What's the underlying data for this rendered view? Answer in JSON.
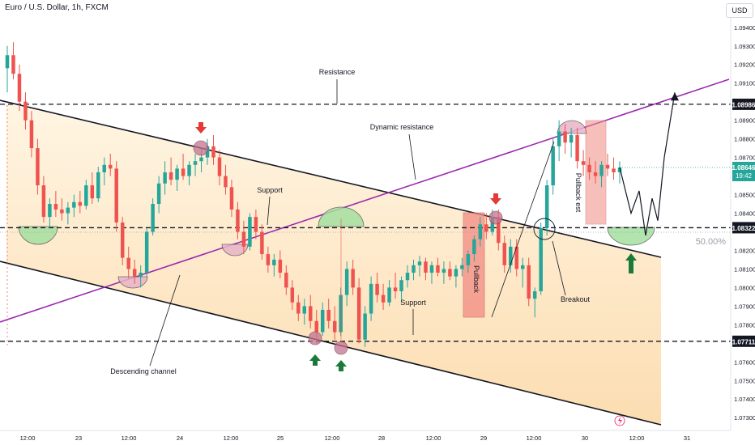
{
  "header": {
    "symbol_title": "Euro / U.S. Dollar, 1h, FXCM",
    "currency": "USD"
  },
  "chart_data": {
    "type": "candlestick",
    "symbol": "EURUSD",
    "timeframe": "1h",
    "x_tick_labels": [
      "12:00",
      "23",
      "12:00",
      "24",
      "12:00",
      "25",
      "12:00",
      "28",
      "12:00",
      "29",
      "12:00",
      "30",
      "12:00",
      "31"
    ],
    "y_tick_labels": [
      "1.09400",
      "1.09300",
      "1.09200",
      "1.09100",
      "1.08900",
      "1.08800",
      "1.08700",
      "1.08500",
      "1.08400",
      "1.08200",
      "1.08100",
      "1.08000",
      "1.07900",
      "1.07800",
      "1.07600",
      "1.07500",
      "1.07400",
      "1.07300"
    ],
    "ylim": [
      1.0724,
      1.0946
    ],
    "horizontal_levels": [
      {
        "price": 1.08986,
        "label": "1.08986",
        "style": "dashed"
      },
      {
        "price": 1.08322,
        "label": "1.08322",
        "style": "dashed"
      },
      {
        "price": 1.07711,
        "label": "1.07711",
        "style": "dashed"
      }
    ],
    "current_price": {
      "price": "1.08646",
      "countdown": "19:42",
      "color": "#26a69a"
    },
    "fib_label": "50.00%",
    "annotations": [
      "Resistance",
      "Dynamic resistance",
      "Support",
      "Support",
      "Descending channel",
      "Pullback",
      "Pullback est",
      "Breakout"
    ],
    "colors": {
      "up": "#26a69a",
      "down": "#ef5350",
      "channel_line": "#131722",
      "dynamic_line": "#9c27b0",
      "channel_fill": "#fde3b8",
      "support_zone": "#a5e0a0",
      "resistance_zone": "#e8b4c8",
      "pullback_box": "#f28b82",
      "arrow_up": "#1b7a3a",
      "arrow_down": "#e53935"
    },
    "candles": [
      {
        "o": 1.0918,
        "h": 1.093,
        "l": 1.0905,
        "c": 1.0925
      },
      {
        "o": 1.0925,
        "h": 1.0932,
        "l": 1.0912,
        "c": 1.0915
      },
      {
        "o": 1.0915,
        "h": 1.092,
        "l": 1.0895,
        "c": 1.09
      },
      {
        "o": 1.09,
        "h": 1.0905,
        "l": 1.0885,
        "c": 1.089
      },
      {
        "o": 1.089,
        "h": 1.0895,
        "l": 1.087,
        "c": 1.0875
      },
      {
        "o": 1.0875,
        "h": 1.088,
        "l": 1.085,
        "c": 1.0855
      },
      {
        "o": 1.0855,
        "h": 1.086,
        "l": 1.0835,
        "c": 1.0838
      },
      {
        "o": 1.0838,
        "h": 1.0848,
        "l": 1.0832,
        "c": 1.0845
      },
      {
        "o": 1.0845,
        "h": 1.0852,
        "l": 1.0838,
        "c": 1.0842
      },
      {
        "o": 1.0842,
        "h": 1.0848,
        "l": 1.0836,
        "c": 1.084
      },
      {
        "o": 1.084,
        "h": 1.0846,
        "l": 1.0834,
        "c": 1.0843
      },
      {
        "o": 1.0843,
        "h": 1.085,
        "l": 1.0838,
        "c": 1.0846
      },
      {
        "o": 1.0846,
        "h": 1.0852,
        "l": 1.084,
        "c": 1.0844
      },
      {
        "o": 1.0844,
        "h": 1.0858,
        "l": 1.0842,
        "c": 1.0855
      },
      {
        "o": 1.0855,
        "h": 1.0862,
        "l": 1.0845,
        "c": 1.0848
      },
      {
        "o": 1.0848,
        "h": 1.0865,
        "l": 1.0846,
        "c": 1.0862
      },
      {
        "o": 1.0862,
        "h": 1.087,
        "l": 1.0855,
        "c": 1.0866
      },
      {
        "o": 1.0866,
        "h": 1.0872,
        "l": 1.086,
        "c": 1.0864
      },
      {
        "o": 1.0864,
        "h": 1.0868,
        "l": 1.083,
        "c": 1.0835
      },
      {
        "o": 1.0835,
        "h": 1.0838,
        "l": 1.0812,
        "c": 1.0816
      },
      {
        "o": 1.0816,
        "h": 1.0822,
        "l": 1.0805,
        "c": 1.081
      },
      {
        "o": 1.081,
        "h": 1.0815,
        "l": 1.0802,
        "c": 1.0806
      },
      {
        "o": 1.0806,
        "h": 1.0812,
        "l": 1.08,
        "c": 1.0808
      },
      {
        "o": 1.0808,
        "h": 1.0832,
        "l": 1.0806,
        "c": 1.083
      },
      {
        "o": 1.083,
        "h": 1.0848,
        "l": 1.0828,
        "c": 1.0845
      },
      {
        "o": 1.0845,
        "h": 1.086,
        "l": 1.084,
        "c": 1.0856
      },
      {
        "o": 1.0856,
        "h": 1.0868,
        "l": 1.085,
        "c": 1.0862
      },
      {
        "o": 1.0862,
        "h": 1.087,
        "l": 1.0855,
        "c": 1.0858
      },
      {
        "o": 1.0858,
        "h": 1.0866,
        "l": 1.0852,
        "c": 1.0864
      },
      {
        "o": 1.0864,
        "h": 1.0872,
        "l": 1.0858,
        "c": 1.086
      },
      {
        "o": 1.086,
        "h": 1.0868,
        "l": 1.0855,
        "c": 1.0866
      },
      {
        "o": 1.0866,
        "h": 1.0872,
        "l": 1.086,
        "c": 1.0868
      },
      {
        "o": 1.0868,
        "h": 1.0875,
        "l": 1.0862,
        "c": 1.087
      },
      {
        "o": 1.087,
        "h": 1.088,
        "l": 1.0866,
        "c": 1.0876
      },
      {
        "o": 1.0876,
        "h": 1.0882,
        "l": 1.0866,
        "c": 1.087
      },
      {
        "o": 1.087,
        "h": 1.0874,
        "l": 1.0855,
        "c": 1.086
      },
      {
        "o": 1.086,
        "h": 1.0866,
        "l": 1.085,
        "c": 1.0854
      },
      {
        "o": 1.0854,
        "h": 1.0858,
        "l": 1.0838,
        "c": 1.0842
      },
      {
        "o": 1.0842,
        "h": 1.0846,
        "l": 1.0826,
        "c": 1.083
      },
      {
        "o": 1.083,
        "h": 1.0836,
        "l": 1.0818,
        "c": 1.0822
      },
      {
        "o": 1.0822,
        "h": 1.084,
        "l": 1.082,
        "c": 1.0838
      },
      {
        "o": 1.0838,
        "h": 1.0842,
        "l": 1.0826,
        "c": 1.083
      },
      {
        "o": 1.083,
        "h": 1.0834,
        "l": 1.0815,
        "c": 1.0818
      },
      {
        "o": 1.0818,
        "h": 1.0822,
        "l": 1.0808,
        "c": 1.0812
      },
      {
        "o": 1.0812,
        "h": 1.0818,
        "l": 1.0806,
        "c": 1.0815
      },
      {
        "o": 1.0815,
        "h": 1.082,
        "l": 1.0805,
        "c": 1.0808
      },
      {
        "o": 1.0808,
        "h": 1.0812,
        "l": 1.0796,
        "c": 1.08
      },
      {
        "o": 1.08,
        "h": 1.0804,
        "l": 1.0788,
        "c": 1.0792
      },
      {
        "o": 1.0792,
        "h": 1.0796,
        "l": 1.0782,
        "c": 1.0786
      },
      {
        "o": 1.0786,
        "h": 1.0794,
        "l": 1.078,
        "c": 1.079
      },
      {
        "o": 1.079,
        "h": 1.0796,
        "l": 1.0778,
        "c": 1.0782
      },
      {
        "o": 1.0782,
        "h": 1.0788,
        "l": 1.077,
        "c": 1.0776
      },
      {
        "o": 1.0776,
        "h": 1.0792,
        "l": 1.0774,
        "c": 1.0788
      },
      {
        "o": 1.0788,
        "h": 1.0794,
        "l": 1.0778,
        "c": 1.0782
      },
      {
        "o": 1.0782,
        "h": 1.079,
        "l": 1.0772,
        "c": 1.0776
      },
      {
        "o": 1.0776,
        "h": 1.08,
        "l": 1.0774,
        "c": 1.0796
      },
      {
        "o": 1.0796,
        "h": 1.0814,
        "l": 1.079,
        "c": 1.081
      },
      {
        "o": 1.081,
        "h": 1.0815,
        "l": 1.0796,
        "c": 1.08
      },
      {
        "o": 1.08,
        "h": 1.0805,
        "l": 1.077,
        "c": 1.0772
      },
      {
        "o": 1.0772,
        "h": 1.079,
        "l": 1.0768,
        "c": 1.0786
      },
      {
        "o": 1.0786,
        "h": 1.0806,
        "l": 1.0782,
        "c": 1.0802
      },
      {
        "o": 1.0802,
        "h": 1.0808,
        "l": 1.0792,
        "c": 1.0796
      },
      {
        "o": 1.0796,
        "h": 1.0802,
        "l": 1.0788,
        "c": 1.0792
      },
      {
        "o": 1.0792,
        "h": 1.0804,
        "l": 1.079,
        "c": 1.08
      },
      {
        "o": 1.08,
        "h": 1.0808,
        "l": 1.0794,
        "c": 1.0798
      },
      {
        "o": 1.0798,
        "h": 1.0806,
        "l": 1.0792,
        "c": 1.0804
      },
      {
        "o": 1.0804,
        "h": 1.0812,
        "l": 1.08,
        "c": 1.0808
      },
      {
        "o": 1.0808,
        "h": 1.0815,
        "l": 1.0804,
        "c": 1.0812
      },
      {
        "o": 1.0812,
        "h": 1.0817,
        "l": 1.0806,
        "c": 1.0814
      },
      {
        "o": 1.0814,
        "h": 1.0816,
        "l": 1.0804,
        "c": 1.0808
      },
      {
        "o": 1.0808,
        "h": 1.0814,
        "l": 1.0802,
        "c": 1.0812
      },
      {
        "o": 1.0812,
        "h": 1.0816,
        "l": 1.0806,
        "c": 1.0808
      },
      {
        "o": 1.0808,
        "h": 1.0814,
        "l": 1.0802,
        "c": 1.081
      },
      {
        "o": 1.081,
        "h": 1.0814,
        "l": 1.0804,
        "c": 1.0806
      },
      {
        "o": 1.0806,
        "h": 1.0812,
        "l": 1.08,
        "c": 1.081
      },
      {
        "o": 1.081,
        "h": 1.0816,
        "l": 1.0806,
        "c": 1.0812
      },
      {
        "o": 1.0812,
        "h": 1.082,
        "l": 1.0808,
        "c": 1.0818
      },
      {
        "o": 1.0818,
        "h": 1.0828,
        "l": 1.0814,
        "c": 1.0826
      },
      {
        "o": 1.0826,
        "h": 1.0838,
        "l": 1.0822,
        "c": 1.0834
      },
      {
        "o": 1.0834,
        "h": 1.084,
        "l": 1.0826,
        "c": 1.083
      },
      {
        "o": 1.083,
        "h": 1.0842,
        "l": 1.0828,
        "c": 1.0838
      },
      {
        "o": 1.0838,
        "h": 1.0842,
        "l": 1.082,
        "c": 1.0824
      },
      {
        "o": 1.0824,
        "h": 1.0828,
        "l": 1.0808,
        "c": 1.0812
      },
      {
        "o": 1.0812,
        "h": 1.0826,
        "l": 1.0808,
        "c": 1.0822
      },
      {
        "o": 1.0822,
        "h": 1.0826,
        "l": 1.0806,
        "c": 1.081
      },
      {
        "o": 1.081,
        "h": 1.0816,
        "l": 1.08,
        "c": 1.0812
      },
      {
        "o": 1.0812,
        "h": 1.0816,
        "l": 1.079,
        "c": 1.0794
      },
      {
        "o": 1.0794,
        "h": 1.08,
        "l": 1.0784,
        "c": 1.0798
      },
      {
        "o": 1.0798,
        "h": 1.0835,
        "l": 1.0796,
        "c": 1.0832
      },
      {
        "o": 1.0832,
        "h": 1.0858,
        "l": 1.0828,
        "c": 1.0855
      },
      {
        "o": 1.0855,
        "h": 1.088,
        "l": 1.085,
        "c": 1.0876
      },
      {
        "o": 1.0876,
        "h": 1.089,
        "l": 1.0868,
        "c": 1.0884
      },
      {
        "o": 1.0884,
        "h": 1.0888,
        "l": 1.0872,
        "c": 1.0878
      },
      {
        "o": 1.0878,
        "h": 1.0886,
        "l": 1.087,
        "c": 1.0882
      },
      {
        "o": 1.0882,
        "h": 1.0886,
        "l": 1.0864,
        "c": 1.0868
      },
      {
        "o": 1.0868,
        "h": 1.0874,
        "l": 1.086,
        "c": 1.0866
      },
      {
        "o": 1.0866,
        "h": 1.087,
        "l": 1.0858,
        "c": 1.0862
      },
      {
        "o": 1.0862,
        "h": 1.0868,
        "l": 1.0856,
        "c": 1.086
      },
      {
        "o": 1.086,
        "h": 1.0868,
        "l": 1.0854,
        "c": 1.0866
      },
      {
        "o": 1.0866,
        "h": 1.0872,
        "l": 1.086,
        "c": 1.0864
      },
      {
        "o": 1.0864,
        "h": 1.087,
        "l": 1.0858,
        "c": 1.0862
      },
      {
        "o": 1.0862,
        "h": 1.0868,
        "l": 1.0856,
        "c": 1.08646
      }
    ],
    "projection_path": [
      1.08646,
      1.084,
      1.0852,
      1.0828,
      1.0848,
      1.0836,
      1.087,
      1.0905
    ],
    "left_red_dashed_guide": true,
    "legend": "none",
    "grid": false
  }
}
